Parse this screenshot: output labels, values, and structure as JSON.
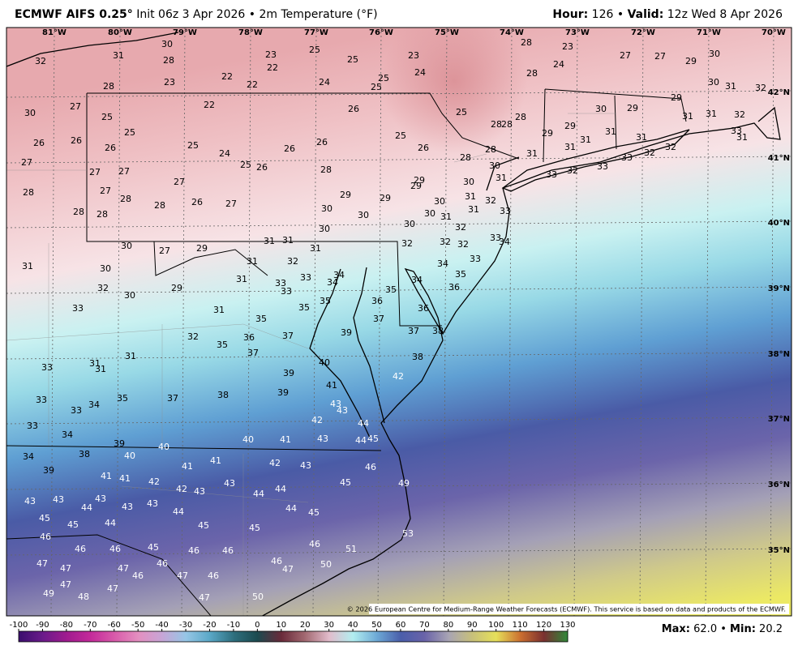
{
  "header": {
    "title": "ECMWF AIFS 0.25°",
    "subtitle": "Init 06z 3 Apr 2026 • 2m Temperature (°F)",
    "hour_label": "Hour:",
    "hour": "126",
    "separator": "•",
    "valid_label": "Valid:",
    "valid": "12z Wed 8 Apr 2026"
  },
  "longitudes": [
    "81°W",
    "80°W",
    "79°W",
    "78°W",
    "77°W",
    "76°W",
    "75°W",
    "74°W",
    "73°W",
    "72°W",
    "71°W",
    "70°W"
  ],
  "latitudes": [
    "42°N",
    "41°N",
    "40°N",
    "39°N",
    "38°N",
    "37°N",
    "36°N",
    "35°N"
  ],
  "stations": [
    32,
    31,
    30,
    28,
    23,
    22,
    25,
    25,
    23,
    24,
    28,
    23,
    28,
    24,
    27,
    27,
    29,
    30,
    30,
    31,
    32,
    28,
    23,
    22,
    22,
    24,
    25,
    25,
    27,
    30,
    22,
    26,
    25,
    28,
    28,
    28,
    30,
    29,
    29,
    31,
    31,
    32,
    25,
    25,
    26,
    26,
    26,
    25,
    24,
    25,
    26,
    26,
    26,
    25,
    26,
    28,
    28,
    30,
    31,
    29,
    29,
    31,
    31,
    31,
    31,
    32,
    32,
    33,
    33,
    32,
    33,
    33,
    31,
    27,
    27,
    27,
    27,
    28,
    29,
    29,
    30,
    31,
    28,
    27,
    28,
    28,
    28,
    28,
    26,
    27,
    29,
    29,
    30,
    30,
    30,
    31,
    32,
    31,
    33,
    31,
    30,
    30,
    32,
    30,
    33,
    34,
    32,
    32,
    32,
    31,
    31,
    31,
    30,
    29,
    27,
    31,
    31,
    32,
    33,
    34,
    30,
    32,
    30,
    29,
    31,
    33,
    33,
    34,
    34,
    33,
    36,
    35,
    34,
    35,
    36,
    36,
    33,
    31,
    35,
    35,
    35,
    37,
    37,
    38,
    32,
    35,
    36,
    37,
    37,
    39,
    40,
    38,
    31,
    31,
    31,
    33,
    39,
    41,
    39,
    42,
    33,
    33,
    34,
    35,
    37,
    38,
    43,
    43,
    42,
    44,
    33,
    34,
    39,
    40,
    40,
    41,
    43,
    44,
    45,
    34,
    38,
    40,
    39,
    41,
    41,
    41,
    41,
    42,
    43,
    46,
    42,
    42,
    43,
    43,
    45,
    49,
    43,
    43,
    44,
    43,
    43,
    43,
    44,
    44,
    45,
    45,
    44,
    44,
    44,
    45,
    45,
    45,
    53,
    46,
    46,
    46,
    45,
    46,
    46,
    46,
    51,
    47,
    47,
    47,
    46,
    46,
    47,
    46,
    46,
    47,
    50,
    47,
    49,
    48,
    47,
    47,
    50
  ],
  "copyright": "© 2026 European Centre for Medium-Range Weather Forecasts (ECMWF). This service is based on data and products of the ECMWF.",
  "colorbar": {
    "ticks": [
      -100,
      -90,
      -80,
      -70,
      -60,
      -50,
      -40,
      -30,
      -20,
      -10,
      0,
      10,
      20,
      30,
      40,
      50,
      60,
      70,
      80,
      90,
      100,
      110,
      120,
      130
    ],
    "colors": [
      "#3b0f6e",
      "#6a1b8a",
      "#a01b8f",
      "#c42a9a",
      "#d85aaa",
      "#e48fc0",
      "#c7a5d6",
      "#96c6e6",
      "#5aa8c7",
      "#2e6f7e",
      "#1c4a4f",
      "#6a2a3a",
      "#a36a72",
      "#e2bccc",
      "#b2eef0",
      "#6da9d6",
      "#4a5eaa",
      "#6a63a9",
      "#a8a4b4",
      "#c8c07a",
      "#e6e05a",
      "#cc7030",
      "#7a3030"
    ]
  },
  "footer": {
    "max_label": "Max:",
    "max": "62.0",
    "separator": "•",
    "min_label": "Min:",
    "min": "20.2"
  }
}
